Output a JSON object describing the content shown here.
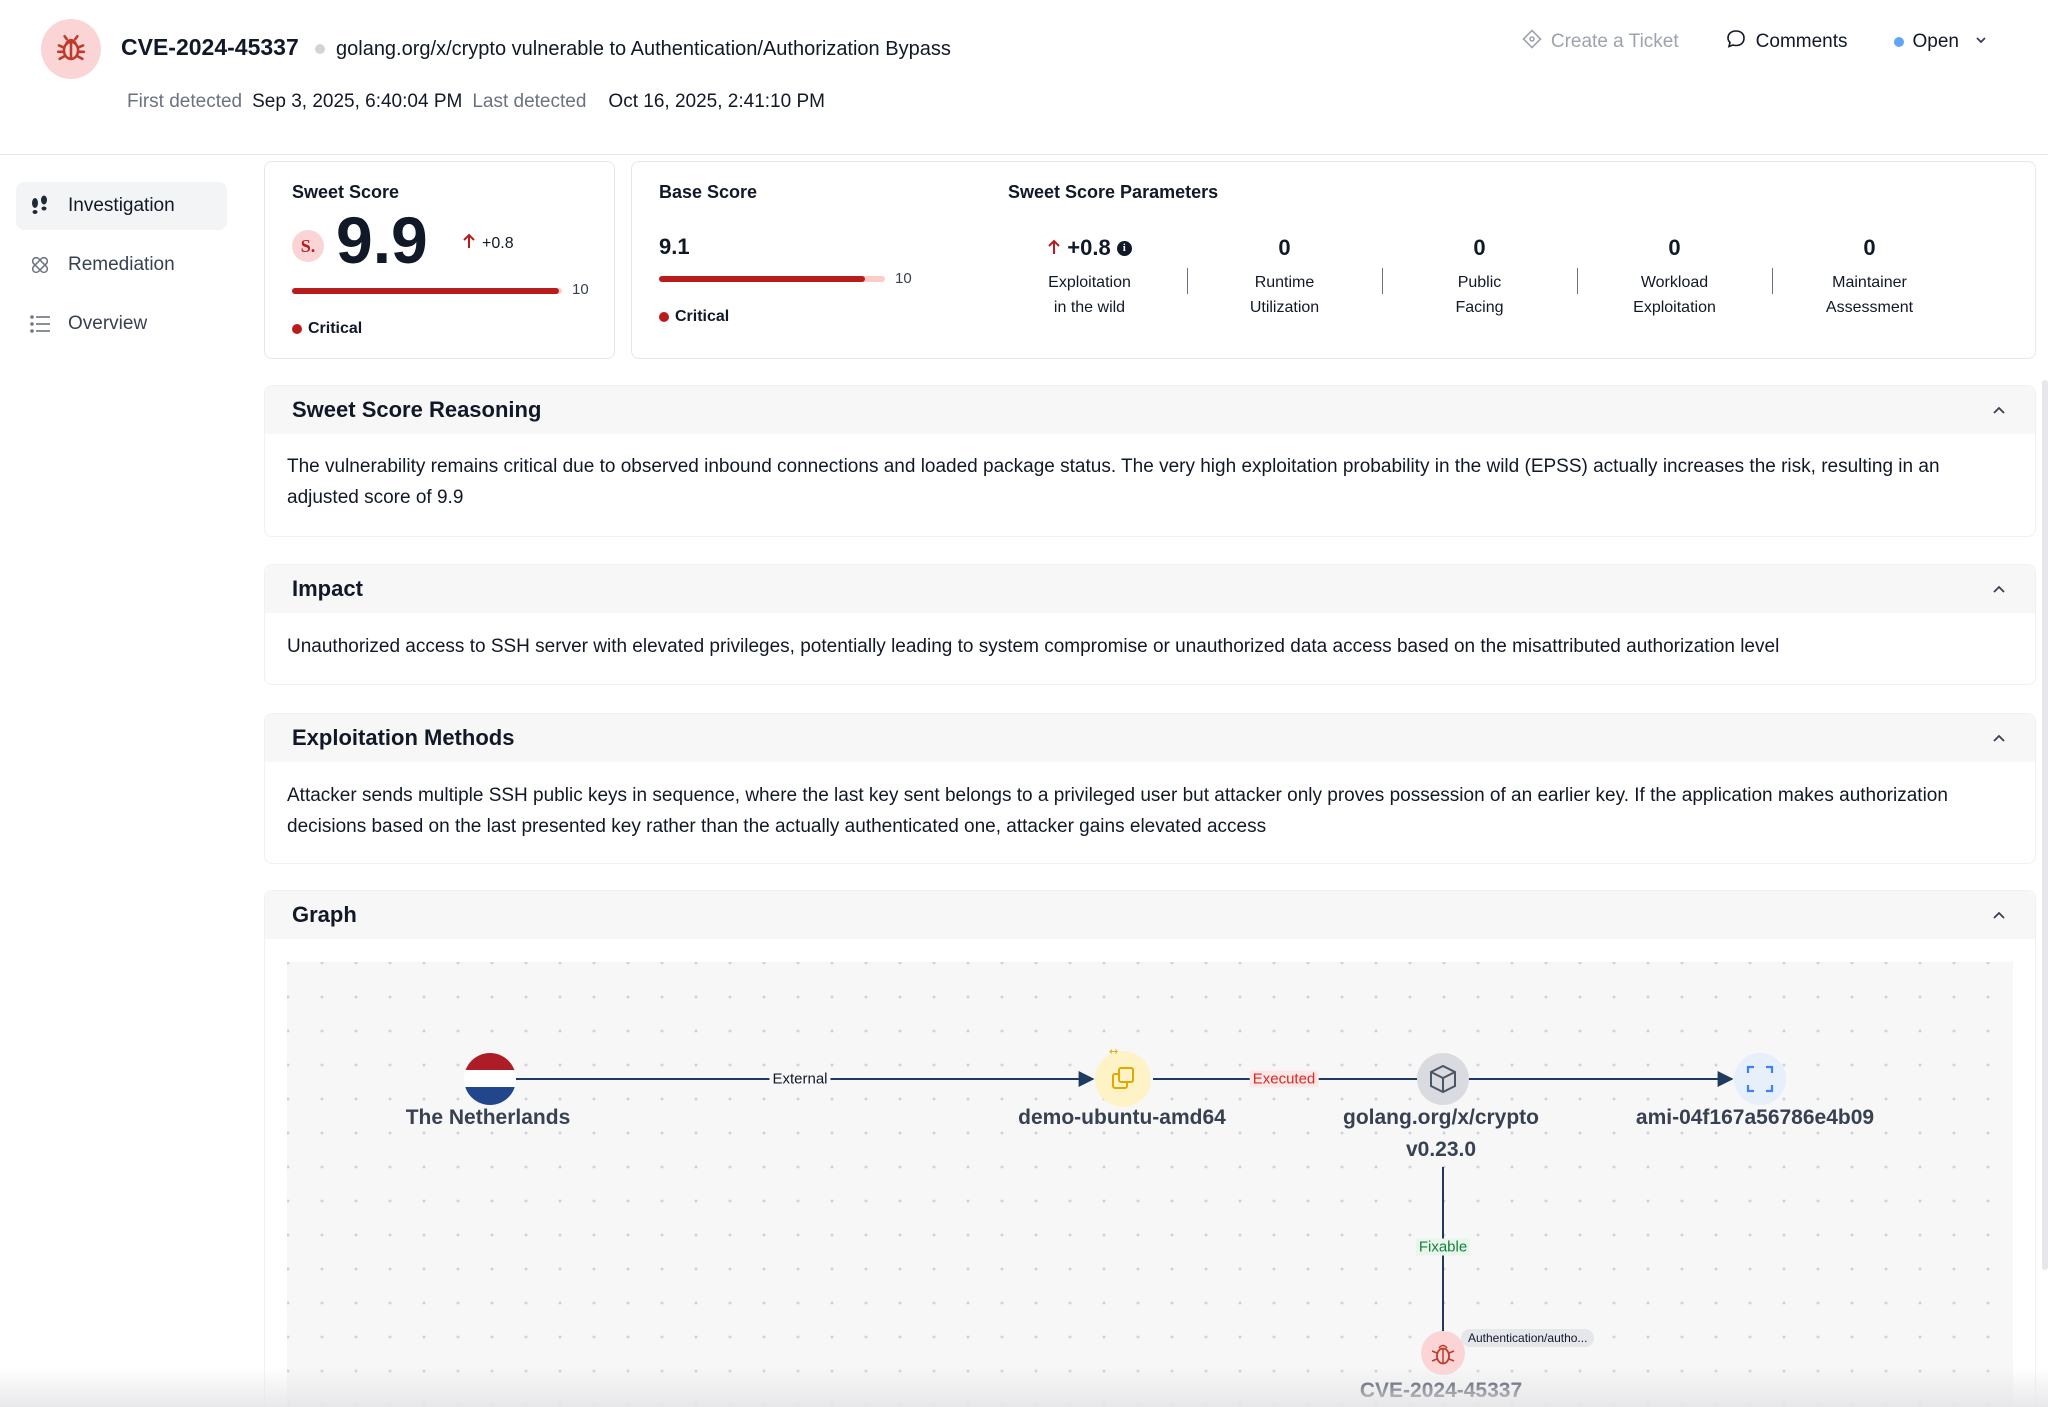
{
  "header": {
    "cve_id": "CVE-2024-45337",
    "title": "golang.org/x/crypto vulnerable to Authentication/Authorization Bypass",
    "first_detected_label": "First detected",
    "first_detected": "Sep 3, 2025, 6:40:04 PM",
    "last_detected_label": "Last detected",
    "last_detected": "Oct 16, 2025, 2:41:10 PM",
    "create_ticket": "Create a Ticket",
    "comments": "Comments",
    "status": "Open",
    "status_color": "#60a5fa"
  },
  "sidebar": {
    "items": [
      {
        "label": "Investigation",
        "icon": "footprints-icon",
        "active": true
      },
      {
        "label": "Remediation",
        "icon": "bandage-icon",
        "active": false
      },
      {
        "label": "Overview",
        "icon": "list-icon",
        "active": false
      }
    ]
  },
  "sweet_score": {
    "label": "Sweet Score",
    "logo": "S.",
    "value": "9.9",
    "delta": "+0.8",
    "max": "10",
    "fraction": 0.99,
    "severity": "Critical",
    "severity_color": "#b91c1c"
  },
  "base_score": {
    "label": "Base Score",
    "value": "9.1",
    "max": "10",
    "fraction": 0.91,
    "severity": "Critical"
  },
  "parameters": {
    "label": "Sweet Score Parameters",
    "items": [
      {
        "value": "+0.8",
        "line1": "Exploitation",
        "line2": "in the wild"
      },
      {
        "value": "0",
        "line1": "Runtime",
        "line2": "Utilization"
      },
      {
        "value": "0",
        "line1": "Public",
        "line2": "Facing"
      },
      {
        "value": "0",
        "line1": "Workload",
        "line2": "Exploitation"
      },
      {
        "value": "0",
        "line1": "Maintainer",
        "line2": "Assessment"
      }
    ]
  },
  "sections": {
    "reasoning": {
      "title": "Sweet Score Reasoning",
      "body": "The vulnerability remains critical due to observed inbound connections and loaded package status. The very high exploitation probability in the wild (EPSS) actually increases the risk, resulting in an adjusted score of 9.9"
    },
    "impact": {
      "title": "Impact",
      "body": "Unauthorized access to SSH server with elevated privileges, potentially leading to system compromise or unauthorized data access based on the misattributed authorization level"
    },
    "exploitation": {
      "title": "Exploitation Methods",
      "body": "Attacker sends multiple SSH public keys in sequence, where the last key sent belongs to a privileged user but attacker only proves possession of an earlier key. If the application makes authorization decisions based on the last presented key rather than the actually authenticated one, attacker gains elevated access"
    },
    "graph": {
      "title": "Graph"
    }
  },
  "graph": {
    "nodes": {
      "country": "The Netherlands",
      "host": "demo-ubuntu-amd64",
      "package_line1": "golang.org/x/crypto",
      "package_line2": "v0.23.0",
      "ami": "ami-04f167a56786e4b09",
      "cve": "CVE-2024-45337",
      "cve_tag": "Authentication/autho..."
    },
    "edges": {
      "external": "External",
      "executed": "Executed",
      "fixable": "Fixable"
    },
    "colors": {
      "executed": "#dc2626",
      "fixable": "#15803d",
      "edge_line": "#1f3a5f"
    }
  }
}
